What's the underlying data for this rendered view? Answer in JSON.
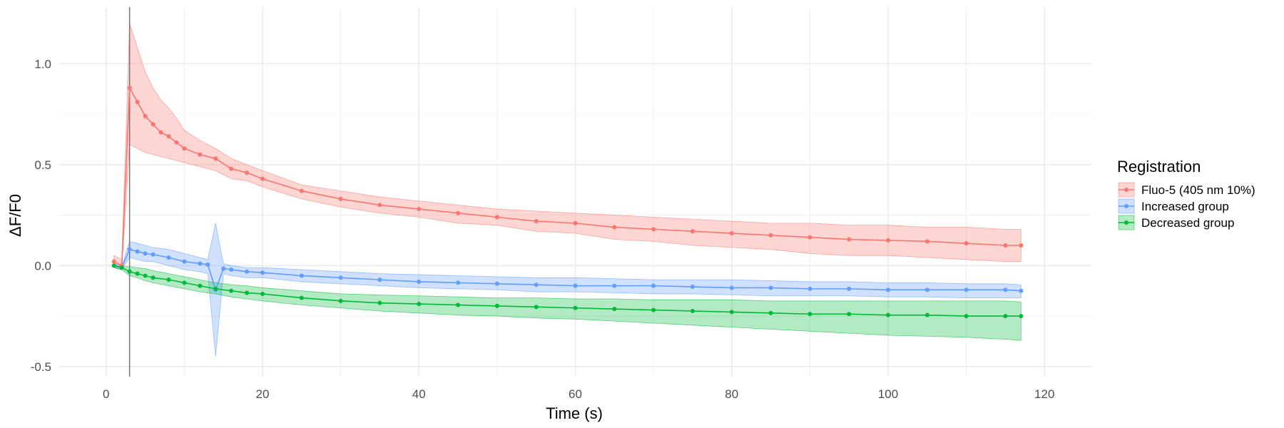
{
  "chart_data": {
    "type": "line",
    "xlabel": "Time (s)",
    "ylabel": "ΔF/F0",
    "xlim": [
      -6,
      126
    ],
    "ylim": [
      -0.55,
      1.28
    ],
    "x_ticks": [
      0,
      20,
      40,
      60,
      80,
      100,
      120
    ],
    "x_tick_labels": [
      "0",
      "20",
      "40",
      "60",
      "80",
      "100",
      "120"
    ],
    "y_ticks": [
      -0.5,
      0.0,
      0.5,
      1.0
    ],
    "y_tick_labels": [
      "-0.5",
      "0.0",
      "0.5",
      "1.0"
    ],
    "grid": true,
    "vline_x": 3,
    "legend_title": "Registration",
    "legend_position": "right",
    "series": [
      {
        "name": "Fluo-5 (405 nm 10%)",
        "color": "#F8766D",
        "x": [
          1,
          2,
          3,
          4,
          5,
          6,
          7,
          8,
          9,
          10,
          12,
          14,
          16,
          18,
          20,
          25,
          30,
          35,
          40,
          45,
          50,
          55,
          60,
          65,
          70,
          75,
          80,
          85,
          90,
          95,
          100,
          105,
          110,
          115,
          117
        ],
        "values": [
          0.02,
          0.0,
          0.88,
          0.81,
          0.74,
          0.7,
          0.66,
          0.64,
          0.61,
          0.58,
          0.55,
          0.53,
          0.48,
          0.46,
          0.43,
          0.37,
          0.33,
          0.3,
          0.28,
          0.26,
          0.24,
          0.22,
          0.21,
          0.19,
          0.18,
          0.17,
          0.16,
          0.15,
          0.14,
          0.13,
          0.125,
          0.12,
          0.11,
          0.1,
          0.1
        ],
        "upper": [
          0.05,
          0.03,
          1.2,
          1.08,
          0.96,
          0.88,
          0.82,
          0.78,
          0.73,
          0.67,
          0.62,
          0.58,
          0.53,
          0.5,
          0.47,
          0.4,
          0.37,
          0.34,
          0.32,
          0.3,
          0.28,
          0.27,
          0.26,
          0.25,
          0.24,
          0.23,
          0.22,
          0.21,
          0.21,
          0.2,
          0.2,
          0.19,
          0.19,
          0.18,
          0.18
        ],
        "lower": [
          -0.01,
          -0.02,
          0.6,
          0.58,
          0.56,
          0.55,
          0.54,
          0.53,
          0.52,
          0.51,
          0.49,
          0.47,
          0.43,
          0.42,
          0.39,
          0.33,
          0.29,
          0.26,
          0.24,
          0.21,
          0.2,
          0.17,
          0.16,
          0.13,
          0.12,
          0.1,
          0.09,
          0.08,
          0.06,
          0.05,
          0.05,
          0.04,
          0.03,
          0.02,
          0.02
        ]
      },
      {
        "name": "Increased group",
        "color": "#619CFF",
        "x": [
          1,
          2,
          3,
          4,
          5,
          6,
          8,
          10,
          12,
          13,
          14,
          15,
          16,
          18,
          20,
          25,
          30,
          35,
          40,
          45,
          50,
          55,
          60,
          65,
          70,
          75,
          80,
          85,
          90,
          95,
          100,
          105,
          110,
          115,
          117
        ],
        "values": [
          0.0,
          -0.01,
          0.08,
          0.07,
          0.06,
          0.055,
          0.04,
          0.02,
          0.01,
          0.005,
          -0.12,
          -0.015,
          -0.02,
          -0.03,
          -0.035,
          -0.05,
          -0.06,
          -0.07,
          -0.08,
          -0.085,
          -0.09,
          -0.095,
          -0.1,
          -0.1,
          -0.1,
          -0.105,
          -0.11,
          -0.11,
          -0.115,
          -0.115,
          -0.12,
          -0.12,
          -0.12,
          -0.12,
          -0.125
        ],
        "upper": [
          0.01,
          0.0,
          0.12,
          0.11,
          0.1,
          0.09,
          0.08,
          0.06,
          0.04,
          0.03,
          0.21,
          0.01,
          0.0,
          -0.01,
          -0.01,
          -0.02,
          -0.03,
          -0.04,
          -0.045,
          -0.05,
          -0.055,
          -0.06,
          -0.06,
          -0.065,
          -0.07,
          -0.07,
          -0.07,
          -0.075,
          -0.08,
          -0.08,
          -0.085,
          -0.085,
          -0.09,
          -0.09,
          -0.095
        ],
        "lower": [
          -0.01,
          -0.02,
          0.04,
          0.03,
          0.02,
          0.02,
          0.0,
          -0.02,
          -0.03,
          -0.04,
          -0.45,
          -0.04,
          -0.05,
          -0.06,
          -0.06,
          -0.08,
          -0.09,
          -0.1,
          -0.11,
          -0.115,
          -0.12,
          -0.13,
          -0.13,
          -0.135,
          -0.14,
          -0.14,
          -0.145,
          -0.15,
          -0.15,
          -0.15,
          -0.155,
          -0.155,
          -0.16,
          -0.16,
          -0.16
        ]
      },
      {
        "name": "Decreased group",
        "color": "#00BA38",
        "x": [
          1,
          2,
          3,
          4,
          5,
          6,
          8,
          10,
          12,
          14,
          16,
          18,
          20,
          25,
          30,
          35,
          40,
          45,
          50,
          55,
          60,
          65,
          70,
          75,
          80,
          85,
          90,
          95,
          100,
          105,
          110,
          115,
          117
        ],
        "values": [
          0.0,
          -0.01,
          -0.03,
          -0.04,
          -0.05,
          -0.06,
          -0.07,
          -0.085,
          -0.1,
          -0.115,
          -0.125,
          -0.135,
          -0.14,
          -0.16,
          -0.175,
          -0.185,
          -0.19,
          -0.195,
          -0.2,
          -0.205,
          -0.21,
          -0.215,
          -0.22,
          -0.225,
          -0.23,
          -0.235,
          -0.24,
          -0.24,
          -0.245,
          -0.245,
          -0.25,
          -0.25,
          -0.25
        ],
        "upper": [
          0.0,
          -0.005,
          -0.005,
          -0.01,
          -0.015,
          -0.025,
          -0.04,
          -0.055,
          -0.07,
          -0.085,
          -0.095,
          -0.1,
          -0.11,
          -0.125,
          -0.14,
          -0.145,
          -0.15,
          -0.155,
          -0.16,
          -0.16,
          -0.165,
          -0.165,
          -0.17,
          -0.17,
          -0.17,
          -0.175,
          -0.175,
          -0.175,
          -0.175,
          -0.175,
          -0.175,
          -0.175,
          -0.18
        ],
        "lower": [
          -0.01,
          -0.02,
          -0.05,
          -0.06,
          -0.075,
          -0.085,
          -0.1,
          -0.115,
          -0.13,
          -0.14,
          -0.155,
          -0.165,
          -0.175,
          -0.195,
          -0.21,
          -0.225,
          -0.235,
          -0.245,
          -0.25,
          -0.26,
          -0.265,
          -0.275,
          -0.285,
          -0.295,
          -0.305,
          -0.315,
          -0.325,
          -0.335,
          -0.345,
          -0.35,
          -0.355,
          -0.365,
          -0.37
        ]
      }
    ]
  }
}
